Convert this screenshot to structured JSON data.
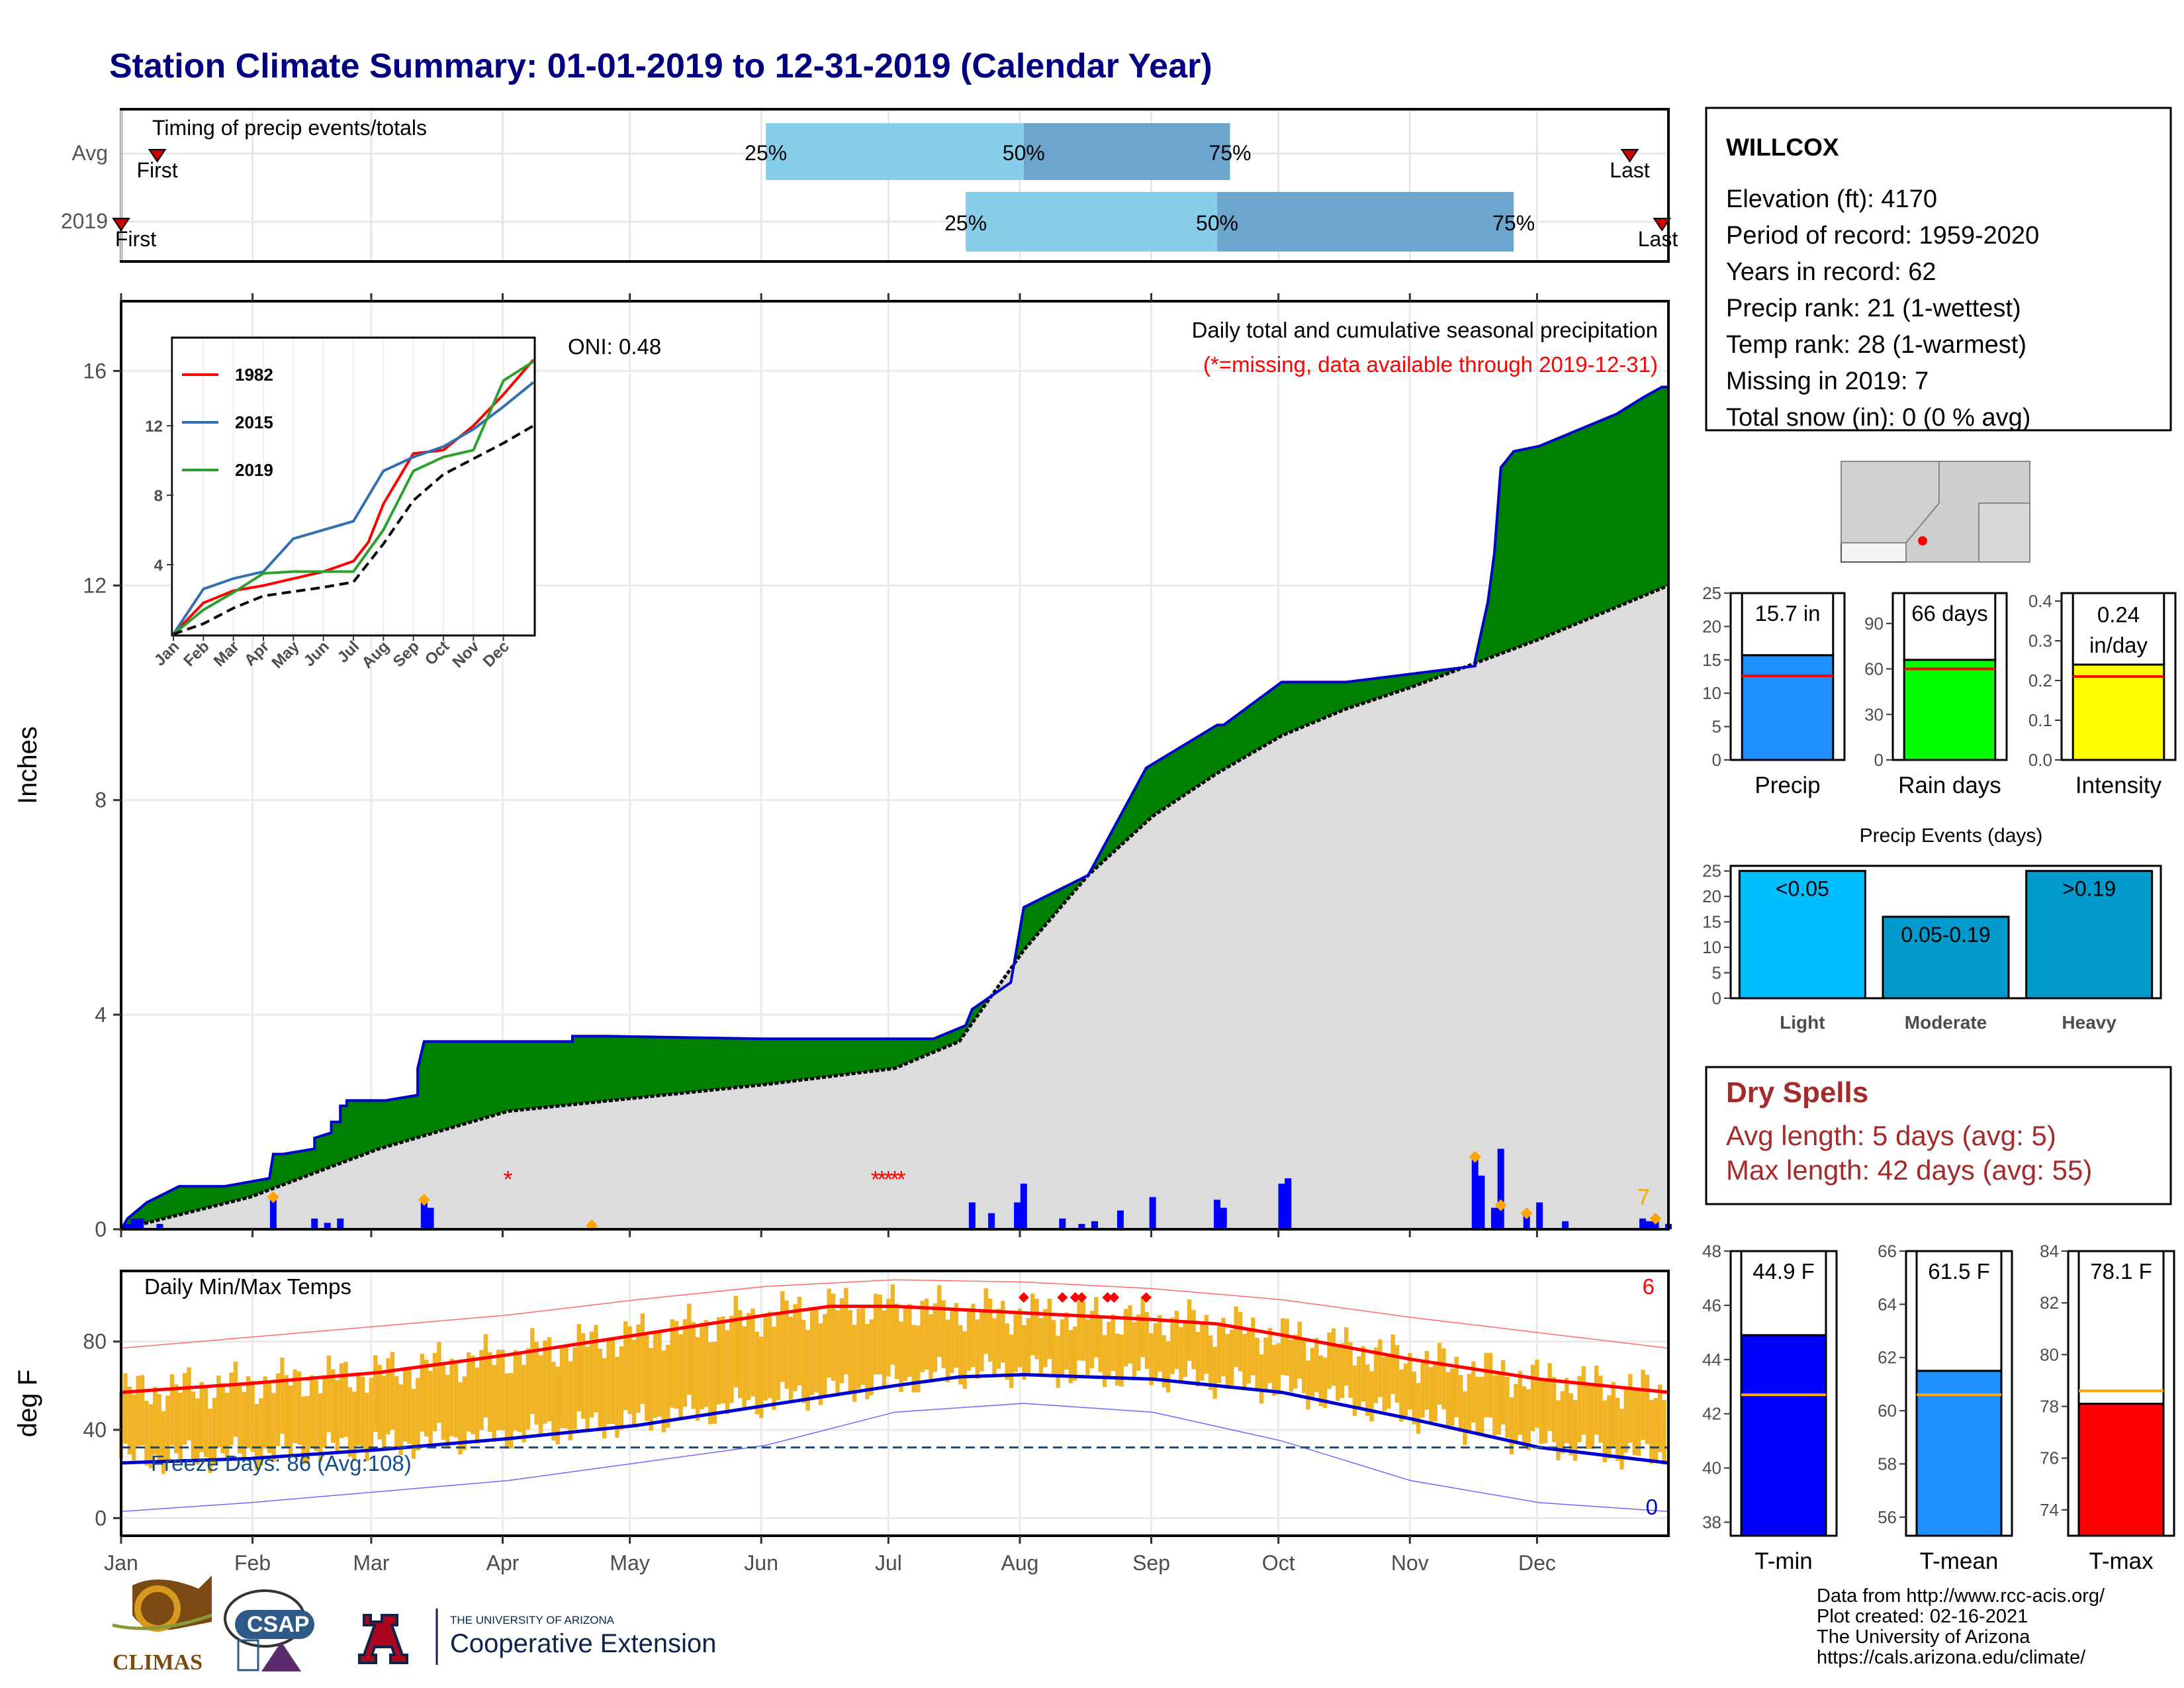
{
  "title": "Station Climate Summary: 01-01-2019 to 12-31-2019 (Calendar Year)",
  "colors": {
    "title": "#000080",
    "light_blue": "#87CEEB",
    "mid_blue": "#6CA6CD",
    "above_normal": "#008000",
    "below_normal": "#8B5A00",
    "normal_fill": "#DCDCDC",
    "precip_bar": "#1E90FF",
    "rain_days_bar": "#00FF00",
    "intensity_bar": "#FFFF00",
    "event_light": "#00BFFF",
    "event_moderate": "#009ACD",
    "event_heavy": "#009ACD",
    "tmin_bar": "#0000FF",
    "tmean_bar": "#1E90FF",
    "tmax_bar": "#FF0000",
    "temp_range": "#F0B323",
    "dry_spell_text": "#A52A2A",
    "missing": "#FF0000"
  },
  "timing": {
    "label": "Timing of precip events/totals",
    "row_labels": [
      "Avg",
      "2019"
    ],
    "rows": [
      {
        "name": "Avg",
        "q25_month": 5.0,
        "q50_month": 7.0,
        "q75_month": 8.6,
        "first_month": 0.28,
        "last_month": 11.7,
        "first_label": "First",
        "last_label": "Last"
      },
      {
        "name": "2019",
        "q25_month": 6.55,
        "q50_month": 8.5,
        "q75_month": 10.8,
        "first_month": 0.0,
        "last_month": 11.95,
        "first_label": "First",
        "last_label": "Last"
      }
    ],
    "pct_labels": [
      "25%",
      "50%",
      "75%"
    ]
  },
  "precip_chart": {
    "ylabel": "Inches",
    "y_ticks": [
      "0",
      "4",
      "8",
      "12",
      "16"
    ],
    "ylim": [
      0,
      17.3
    ],
    "month_labels": [
      "Jan",
      "Feb",
      "Mar",
      "Apr",
      "May",
      "Jun",
      "Jul",
      "Aug",
      "Sep",
      "Oct",
      "Nov",
      "Dec"
    ],
    "annotation_title": "Daily total and cumulative seasonal precipitation",
    "annotation_missing": "(*=missing, data available through 2019-12-31)",
    "oni": "ONI: 0.48",
    "missing_count": "7",
    "cumulative_2019": [
      [
        0,
        0
      ],
      [
        0.05,
        0.2
      ],
      [
        0.2,
        0.5
      ],
      [
        0.45,
        0.8
      ],
      [
        0.8,
        0.8
      ],
      [
        1.15,
        0.95
      ],
      [
        1.18,
        1.4
      ],
      [
        1.25,
        1.4
      ],
      [
        1.5,
        1.5
      ],
      [
        1.5,
        1.7
      ],
      [
        1.63,
        1.8
      ],
      [
        1.63,
        2.0
      ],
      [
        1.7,
        2.0
      ],
      [
        1.7,
        2.3
      ],
      [
        1.75,
        2.3
      ],
      [
        1.75,
        2.4
      ],
      [
        2.05,
        2.4
      ],
      [
        2.3,
        2.5
      ],
      [
        2.3,
        3.0
      ],
      [
        2.35,
        3.5
      ],
      [
        3.2,
        3.5
      ],
      [
        3.5,
        3.5
      ],
      [
        3.5,
        3.6
      ],
      [
        3.75,
        3.6
      ],
      [
        5.0,
        3.55
      ],
      [
        6.3,
        3.55
      ],
      [
        6.55,
        3.8
      ],
      [
        6.6,
        4.1
      ],
      [
        6.9,
        4.6
      ],
      [
        7.0,
        6.0
      ],
      [
        7.5,
        6.6
      ],
      [
        7.95,
        8.6
      ],
      [
        8.5,
        9.4
      ],
      [
        8.55,
        9.4
      ],
      [
        9.0,
        10.2
      ],
      [
        9.5,
        10.2
      ],
      [
        10.5,
        10.5
      ],
      [
        10.5,
        10.6
      ],
      [
        10.6,
        11.7
      ],
      [
        10.65,
        12.6
      ],
      [
        10.7,
        14.2
      ],
      [
        10.8,
        14.5
      ],
      [
        11.0,
        14.6
      ],
      [
        11.3,
        14.9
      ],
      [
        11.6,
        15.2
      ],
      [
        11.8,
        15.5
      ],
      [
        11.95,
        15.7
      ],
      [
        12,
        15.7
      ]
    ],
    "normal_cumulative": [
      [
        0,
        0
      ],
      [
        1,
        0.6
      ],
      [
        2,
        1.5
      ],
      [
        3,
        2.2
      ],
      [
        4,
        2.45
      ],
      [
        5,
        2.7
      ],
      [
        6,
        3.0
      ],
      [
        6.5,
        3.5
      ],
      [
        7,
        5.2
      ],
      [
        7.5,
        6.6
      ],
      [
        8,
        7.7
      ],
      [
        8.5,
        8.5
      ],
      [
        9,
        9.2
      ],
      [
        9.5,
        9.7
      ],
      [
        10,
        10.1
      ],
      [
        10.5,
        10.55
      ],
      [
        11,
        11.0
      ],
      [
        11.5,
        11.5
      ],
      [
        12,
        12.0
      ]
    ],
    "daily_precip": [
      [
        0.05,
        0.1
      ],
      [
        0.1,
        0.2
      ],
      [
        0.15,
        0.2
      ],
      [
        0.3,
        0.1
      ],
      [
        1.18,
        0.55
      ],
      [
        1.5,
        0.2
      ],
      [
        1.6,
        0.12
      ],
      [
        1.7,
        0.2
      ],
      [
        2.35,
        0.5
      ],
      [
        2.4,
        0.4
      ],
      [
        3.5,
        0.02
      ],
      [
        3.65,
        0.02
      ],
      [
        6.6,
        0.5
      ],
      [
        6.75,
        0.3
      ],
      [
        6.95,
        0.5
      ],
      [
        7.0,
        0.85
      ],
      [
        7.3,
        0.2
      ],
      [
        7.45,
        0.1
      ],
      [
        7.55,
        0.15
      ],
      [
        7.75,
        0.35
      ],
      [
        8.0,
        0.6
      ],
      [
        8.5,
        0.55
      ],
      [
        8.55,
        0.4
      ],
      [
        9.0,
        0.85
      ],
      [
        9.05,
        0.95
      ],
      [
        10.5,
        1.3
      ],
      [
        10.55,
        1.0
      ],
      [
        10.65,
        0.4
      ],
      [
        10.7,
        1.5
      ],
      [
        10.9,
        0.25
      ],
      [
        11.0,
        0.5
      ],
      [
        11.2,
        0.15
      ],
      [
        11.8,
        0.2
      ],
      [
        11.85,
        0.15
      ],
      [
        11.9,
        0.2
      ],
      [
        12.0,
        0.1
      ]
    ],
    "missing_days": [
      3.0,
      5.85,
      5.9,
      5.95,
      6.0,
      6.05
    ]
  },
  "inset": {
    "legend": [
      "1982",
      "2015",
      "2019"
    ],
    "legend_colors": [
      "#FF0000",
      "#3070B0",
      "#2CA02C"
    ],
    "y_ticks": [
      "4",
      "8",
      "12"
    ],
    "month_labels": [
      "Jan",
      "Feb",
      "Mar",
      "Apr",
      "May",
      "Jun",
      "Jul",
      "Aug",
      "Sep",
      "Oct",
      "Nov",
      "Dec"
    ],
    "ylim": [
      0,
      17
    ],
    "series": [
      {
        "name": "1982",
        "values": [
          [
            0,
            0
          ],
          [
            1,
            1.8
          ],
          [
            2,
            2.5
          ],
          [
            3,
            2.8
          ],
          [
            4,
            3.2
          ],
          [
            5,
            3.6
          ],
          [
            6,
            4.2
          ],
          [
            6.5,
            5.3
          ],
          [
            7,
            7.5
          ],
          [
            8,
            10.4
          ],
          [
            9,
            10.6
          ],
          [
            10,
            12.0
          ],
          [
            11,
            13.8
          ],
          [
            12,
            15.8
          ]
        ]
      },
      {
        "name": "2015",
        "values": [
          [
            0,
            0
          ],
          [
            1,
            2.6
          ],
          [
            2,
            3.2
          ],
          [
            3,
            3.6
          ],
          [
            4,
            5.5
          ],
          [
            5,
            6.0
          ],
          [
            6,
            6.5
          ],
          [
            7,
            9.4
          ],
          [
            8,
            10.2
          ],
          [
            9,
            10.8
          ],
          [
            10,
            11.8
          ],
          [
            11,
            13.1
          ],
          [
            12,
            14.5
          ]
        ]
      },
      {
        "name": "2019",
        "values": [
          [
            0,
            0
          ],
          [
            1,
            1.4
          ],
          [
            2,
            2.4
          ],
          [
            3,
            3.5
          ],
          [
            4,
            3.6
          ],
          [
            5,
            3.6
          ],
          [
            6,
            3.6
          ],
          [
            7,
            6.0
          ],
          [
            8,
            9.4
          ],
          [
            9,
            10.2
          ],
          [
            10,
            10.6
          ],
          [
            11,
            14.6
          ],
          [
            12,
            15.7
          ]
        ]
      },
      {
        "name": "normal",
        "values": [
          [
            0,
            0
          ],
          [
            1,
            0.6
          ],
          [
            2,
            1.5
          ],
          [
            3,
            2.2
          ],
          [
            4,
            2.45
          ],
          [
            5,
            2.7
          ],
          [
            6,
            3.0
          ],
          [
            7,
            5.2
          ],
          [
            8,
            7.7
          ],
          [
            9,
            9.2
          ],
          [
            10,
            10.1
          ],
          [
            11,
            11.0
          ],
          [
            12,
            12.0
          ]
        ]
      }
    ]
  },
  "station": {
    "name": "WILLCOX",
    "lines": [
      "Elevation (ft): 4170",
      "Period of record: 1959-2020",
      "Years in record: 62",
      "Precip rank: 21 (1-wettest)",
      "Temp rank: 28 (1-warmest)",
      "Missing in 2019: 7",
      "Total snow (in): 0 (0 % avg)"
    ]
  },
  "precip_summary": [
    {
      "label": "Precip",
      "value_text": "15.7 in",
      "value": 15.7,
      "normal": 12.6,
      "ylim": [
        0,
        25
      ],
      "ticks": [
        "0",
        "5",
        "10",
        "15",
        "20",
        "25"
      ],
      "tick_values": [
        0,
        5,
        10,
        15,
        20,
        25
      ],
      "color": "#1E90FF"
    },
    {
      "label": "Rain days",
      "value_text": "66 days",
      "value": 66,
      "normal": 60,
      "ylim": [
        0,
        110
      ],
      "ticks": [
        "0",
        "30",
        "60",
        "90"
      ],
      "tick_values": [
        0,
        30,
        60,
        90
      ],
      "color": "#00FF00"
    },
    {
      "label": "Intensity",
      "value_text": "0.24 in/day",
      "value": 0.24,
      "normal": 0.21,
      "ylim": [
        0,
        0.42
      ],
      "ticks": [
        "0.0",
        "0.1",
        "0.2",
        "0.3",
        "0.4"
      ],
      "tick_values": [
        0,
        0.1,
        0.2,
        0.3,
        0.4
      ],
      "color": "#FFFF00"
    }
  ],
  "precip_events": {
    "title": "Precip Events (days)",
    "ticks": [
      "0",
      "5",
      "10",
      "15",
      "20",
      "25"
    ],
    "bars": [
      {
        "category": "Light",
        "label": "<0.05",
        "value": 25
      },
      {
        "category": "Moderate",
        "label": "0.05-0.19",
        "value": 16
      },
      {
        "category": "Heavy",
        "label": ">0.19",
        "value": 25
      }
    ]
  },
  "dry_spells": {
    "title": "Dry Spells",
    "avg": "Avg length: 5 days (avg: 5)",
    "max": "Max length: 42 days (avg: 55)"
  },
  "temp_chart": {
    "label": "Daily Min/Max Temps",
    "ylabel": "deg F",
    "y_ticks": [
      "0",
      "40",
      "80"
    ],
    "ylim": [
      -8,
      112
    ],
    "freeze": "Freeze Days: 86 (Avg:108)",
    "freeze_line": 32,
    "hot_count": "6",
    "cold_count": "0",
    "normal_max": [
      [
        0,
        57
      ],
      [
        1,
        61
      ],
      [
        2,
        66
      ],
      [
        3,
        74
      ],
      [
        4,
        83
      ],
      [
        5,
        92
      ],
      [
        5.5,
        96
      ],
      [
        6,
        96
      ],
      [
        7,
        93
      ],
      [
        8,
        90
      ],
      [
        8.5,
        88
      ],
      [
        9,
        83
      ],
      [
        10,
        72
      ],
      [
        11,
        63
      ],
      [
        12,
        57
      ]
    ],
    "normal_min": [
      [
        0,
        25
      ],
      [
        1,
        27
      ],
      [
        2,
        31
      ],
      [
        3,
        36
      ],
      [
        4,
        42
      ],
      [
        5,
        51
      ],
      [
        6,
        60
      ],
      [
        6.5,
        64
      ],
      [
        7,
        65
      ],
      [
        8,
        63
      ],
      [
        9,
        57
      ],
      [
        10,
        45
      ],
      [
        11,
        32
      ],
      [
        12,
        25
      ]
    ],
    "record_max": [
      [
        0,
        77
      ],
      [
        1,
        82
      ],
      [
        2,
        87
      ],
      [
        3,
        92
      ],
      [
        4,
        99
      ],
      [
        5,
        105
      ],
      [
        6,
        108
      ],
      [
        7,
        107
      ],
      [
        8,
        104
      ],
      [
        9,
        99
      ],
      [
        10,
        91
      ],
      [
        11,
        84
      ],
      [
        12,
        77
      ]
    ],
    "record_min": [
      [
        0,
        3
      ],
      [
        1,
        7
      ],
      [
        2,
        12
      ],
      [
        3,
        17
      ],
      [
        4,
        25
      ],
      [
        5,
        33
      ],
      [
        6,
        48
      ],
      [
        7,
        52
      ],
      [
        8,
        48
      ],
      [
        9,
        35
      ],
      [
        10,
        17
      ],
      [
        11,
        7
      ],
      [
        12,
        3
      ]
    ]
  },
  "temp_summary": [
    {
      "label": "T-min",
      "value_text": "44.9 F",
      "value": 44.9,
      "normal": 42.7,
      "ylim": [
        37.5,
        48
      ],
      "ticks": [
        "38",
        "40",
        "42",
        "44",
        "46",
        "48"
      ],
      "tick_values": [
        38,
        40,
        42,
        44,
        46,
        48
      ],
      "color": "#0000FF"
    },
    {
      "label": "T-mean",
      "value_text": "61.5 F",
      "value": 61.5,
      "normal": 60.6,
      "ylim": [
        55.3,
        66
      ],
      "ticks": [
        "56",
        "58",
        "60",
        "62",
        "64",
        "66"
      ],
      "tick_values": [
        56,
        58,
        60,
        62,
        64,
        66
      ],
      "color": "#1E90FF"
    },
    {
      "label": "T-max",
      "value_text": "78.1 F",
      "value": 78.1,
      "normal": 78.6,
      "ylim": [
        73,
        84
      ],
      "ticks": [
        "74",
        "76",
        "78",
        "80",
        "82",
        "84"
      ],
      "tick_values": [
        74,
        76,
        78,
        80,
        82,
        84
      ],
      "color": "#FF0000"
    }
  ],
  "credits": [
    "Data from http://www.rcc-acis.org/",
    "Plot created: 02-16-2021",
    "The University of Arizona",
    "https://cals.arizona.edu/climate/"
  ],
  "logos": {
    "climas": "CLIMAS",
    "csap": "CSAP",
    "ua_small": "THE UNIVERSITY OF ARIZONA",
    "coop": "Cooperative Extension"
  }
}
